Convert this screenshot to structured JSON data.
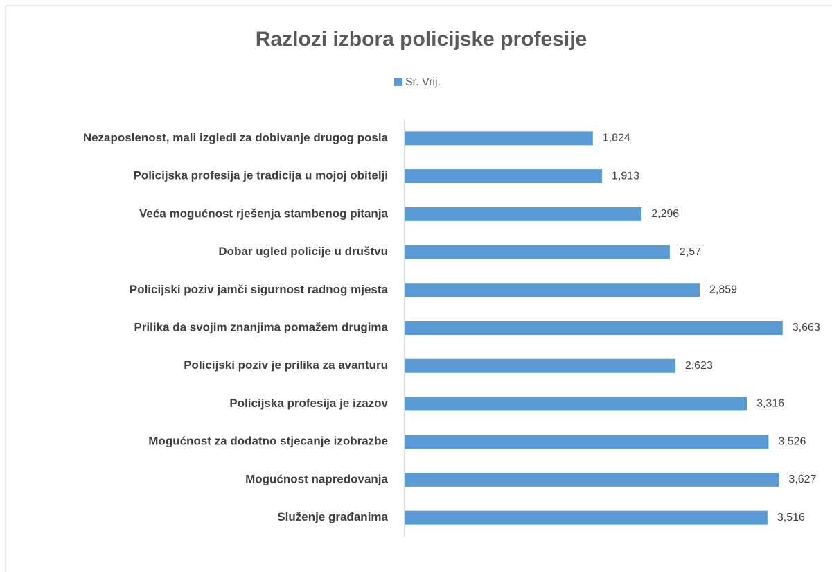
{
  "chart_data": {
    "type": "bar",
    "orientation": "horizontal",
    "title": "Razlozi izbora policijske profesije",
    "series": [
      {
        "name": "Sr. Vrij.",
        "color": "#5b9bd5",
        "values": [
          1.824,
          1.913,
          2.296,
          2.57,
          2.859,
          3.663,
          2.623,
          3.316,
          3.526,
          3.627,
          3.516
        ],
        "value_labels": [
          "1,824",
          "1,913",
          "2,296",
          "2,57",
          "2,859",
          "3,663",
          "2,623",
          "3,316",
          "3,526",
          "3,627",
          "3,516"
        ]
      }
    ],
    "categories": [
      "Nezaposlenost, mali izgledi za dobivanje drugog posla",
      "Policijska profesija je tradicija u mojoj obitelji",
      "Veća mogućnost rješenja stambenog pitanja",
      "Dobar ugled policije u društvu",
      "Policijski poziv jamči sigurnost radnog mjesta",
      "Prilika da svojim znanjima pomažem drugima",
      "Policijski poziv je prilika za avanturu",
      "Policijska profesija je izazov",
      "Mogućnost za dodatno stjecanje izobrazbe",
      "Mogućnost napredovanja",
      "Služenje građanima"
    ],
    "xlim": [
      0,
      4
    ],
    "legend": "top"
  }
}
